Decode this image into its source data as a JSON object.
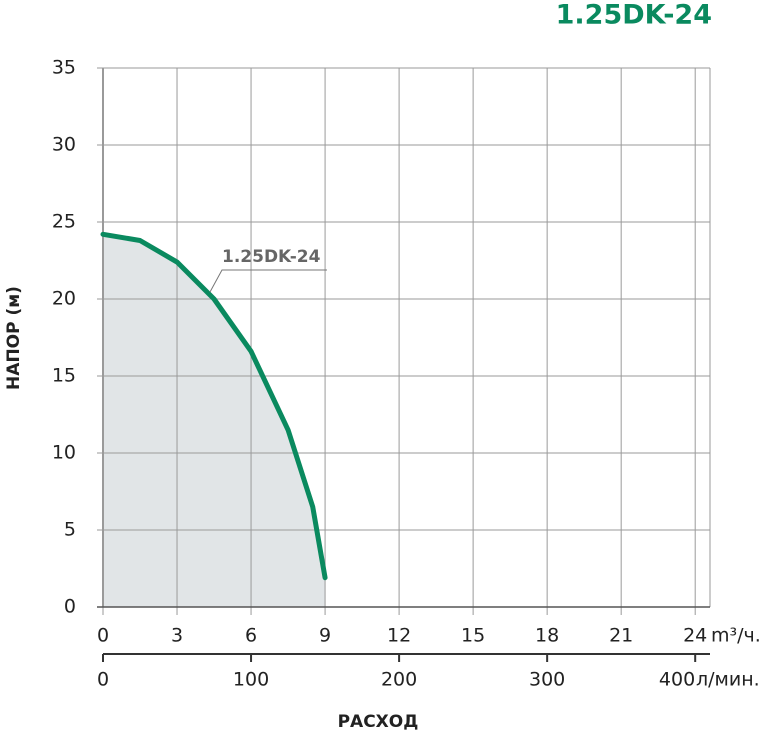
{
  "chart_data": {
    "type": "line",
    "title": "1.25DK-24",
    "x": [
      0,
      1.5,
      3,
      4.5,
      6,
      7.5,
      8.5,
      9
    ],
    "series": [
      {
        "name": "1.25DK-24",
        "color": "#0a8a5f",
        "values": [
          24.2,
          23.8,
          22.4,
          20.0,
          16.6,
          11.5,
          6.5,
          1.9
        ]
      }
    ],
    "fill_color": "#e1e5e7",
    "xlim": [
      0,
      24.6
    ],
    "xticks": [
      0,
      3,
      6,
      9,
      12,
      15,
      18,
      21,
      24
    ],
    "x_unit": "m³/ч.",
    "x2lim": [
      0,
      410
    ],
    "x2ticks": [
      0,
      100,
      200,
      300,
      400
    ],
    "x2_unit": "л/мин.",
    "ylim": [
      0,
      35
    ],
    "yticks": [
      0,
      5,
      10,
      15,
      20,
      25,
      30,
      35
    ],
    "ylabel": "НАПОР (м)",
    "xlabel": "РАСХОД",
    "grid": true
  }
}
